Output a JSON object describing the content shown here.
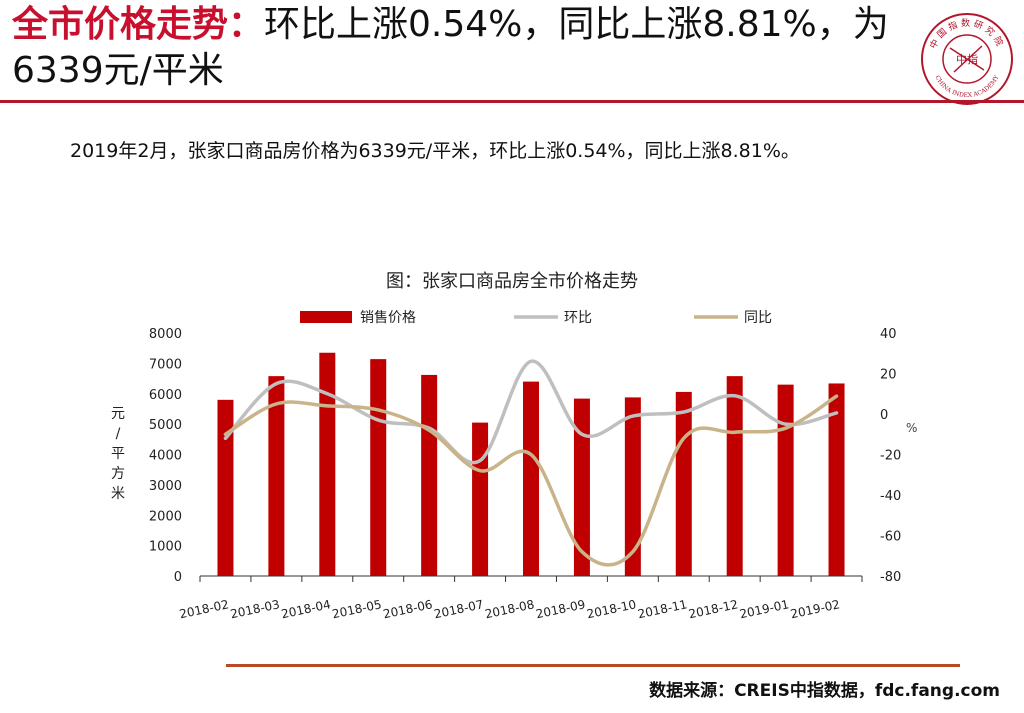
{
  "headline": {
    "red_part": "全市价格走势：",
    "rest": "环比上涨0.54%，同比上涨8.81%，为6339元/平米"
  },
  "summary": "2019年2月，张家口商品房价格为6339元/平米，环比上涨0.54%，同比上涨8.81%。",
  "logo": {
    "top_text": "中国指数研究院",
    "bottom_text": "CHINA INDEX ACADEMY",
    "center_text": "中指",
    "color": "#b2162a"
  },
  "source": "数据来源：CREIS中指数据，fdc.fang.com",
  "colors": {
    "accent": "#c8102e",
    "bar": "#c00000",
    "mom_line": "#bfbfbf",
    "yoy_line": "#c9b48a",
    "footer_rule": "#b84a23"
  },
  "chart_data": {
    "type": "bar",
    "title": "图：张家口商品房全市价格走势",
    "categories": [
      "2018-02",
      "2018-03",
      "2018-04",
      "2018-05",
      "2018-06",
      "2018-07",
      "2018-08",
      "2018-09",
      "2018-10",
      "2018-11",
      "2018-12",
      "2019-01",
      "2019-02"
    ],
    "series": [
      {
        "name": "销售价格",
        "type": "bar",
        "axis": "left",
        "values": [
          5800,
          6580,
          7350,
          7140,
          6620,
          5050,
          6400,
          5840,
          5880,
          6060,
          6580,
          6300,
          6339
        ]
      },
      {
        "name": "环比",
        "type": "line",
        "axis": "right",
        "values": [
          -12,
          15,
          10,
          -3,
          -7,
          -23,
          26,
          -10,
          -1,
          1,
          9,
          -5,
          0.54
        ]
      },
      {
        "name": "同比",
        "type": "line",
        "axis": "right",
        "values": [
          -10,
          5,
          4,
          2,
          -8,
          -28,
          -20,
          -68,
          -68,
          -12,
          -9,
          -7,
          8.81
        ]
      }
    ],
    "ylabel_left": "元/平方米",
    "ylabel_right": "%",
    "ylim_left": [
      0,
      8000
    ],
    "yticks_left": [
      0,
      1000,
      2000,
      3000,
      4000,
      5000,
      6000,
      7000,
      8000
    ],
    "ylim_right": [
      -80,
      40
    ],
    "yticks_right": [
      -80,
      -60,
      -40,
      -20,
      0,
      20,
      40
    ],
    "legend_position": "top",
    "grid": false
  }
}
